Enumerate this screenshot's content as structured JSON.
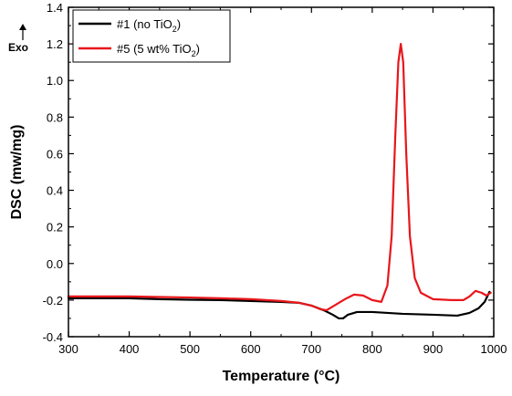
{
  "chart_data": {
    "type": "line",
    "xlabel": "Temperature (°C)",
    "ylabel": "DSC (mw/mg)",
    "annotation": "Exo",
    "xlim": [
      300,
      1000
    ],
    "ylim": [
      -0.4,
      1.4
    ],
    "xticks": [
      300,
      400,
      500,
      600,
      700,
      800,
      900,
      1000
    ],
    "yticks": [
      -0.4,
      -0.2,
      0.0,
      0.2,
      0.4,
      0.6,
      0.8,
      1.0,
      1.2,
      1.4
    ],
    "ytick_labels": [
      "-0.4",
      "-0.2",
      "0.0",
      "0.2",
      "0.4",
      "0.6",
      "0.8",
      "1.0",
      "1.2",
      "1.4"
    ],
    "legend_position": "top-left",
    "grid": false,
    "series": [
      {
        "name_main": "#1 (no TiO",
        "name_sub": "2",
        "name_tail": ")",
        "color": "#000000",
        "x": [
          300,
          350,
          400,
          450,
          500,
          550,
          600,
          650,
          680,
          700,
          720,
          735,
          745,
          752,
          760,
          775,
          790,
          800,
          850,
          900,
          940,
          960,
          975,
          985,
          993
        ],
        "y": [
          -0.19,
          -0.19,
          -0.19,
          -0.195,
          -0.198,
          -0.2,
          -0.205,
          -0.21,
          -0.215,
          -0.23,
          -0.255,
          -0.28,
          -0.3,
          -0.3,
          -0.28,
          -0.265,
          -0.265,
          -0.265,
          -0.275,
          -0.28,
          -0.285,
          -0.27,
          -0.245,
          -0.21,
          -0.155
        ]
      },
      {
        "name_main": "#5 (5 wt% TiO",
        "name_sub": "2",
        "name_tail": ")",
        "color": "#e8161b",
        "x": [
          300,
          350,
          400,
          450,
          500,
          550,
          600,
          650,
          680,
          700,
          715,
          725,
          740,
          755,
          770,
          785,
          800,
          815,
          825,
          832,
          838,
          843,
          847,
          851,
          856,
          862,
          870,
          880,
          900,
          930,
          950,
          960,
          970,
          980,
          988,
          995
        ],
        "y": [
          -0.18,
          -0.18,
          -0.18,
          -0.183,
          -0.186,
          -0.19,
          -0.195,
          -0.205,
          -0.215,
          -0.23,
          -0.25,
          -0.255,
          -0.225,
          -0.195,
          -0.17,
          -0.175,
          -0.2,
          -0.21,
          -0.12,
          0.15,
          0.7,
          1.1,
          1.2,
          1.1,
          0.6,
          0.15,
          -0.08,
          -0.16,
          -0.195,
          -0.2,
          -0.2,
          -0.18,
          -0.15,
          -0.16,
          -0.175,
          -0.16
        ]
      }
    ]
  }
}
